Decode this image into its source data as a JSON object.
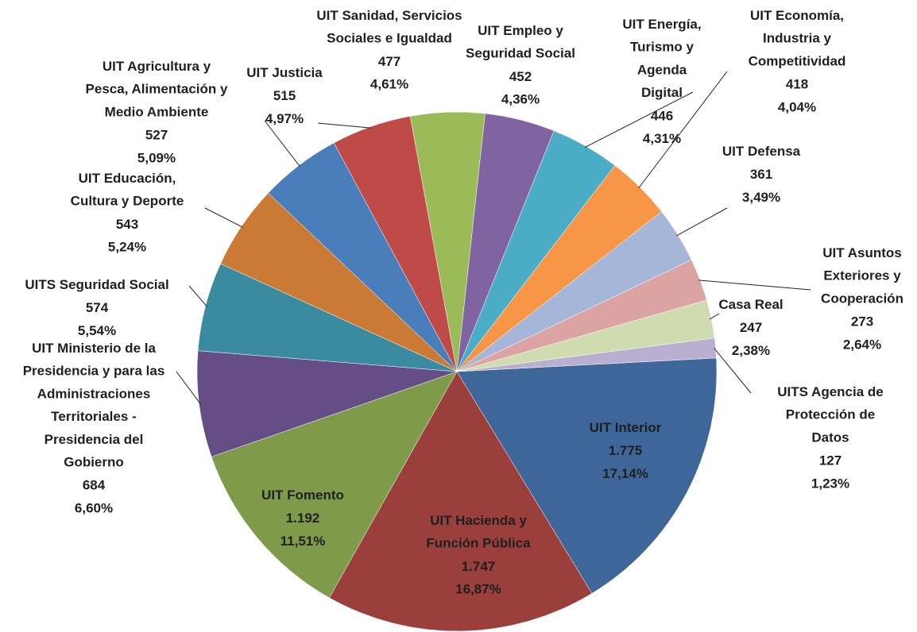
{
  "chart_data": {
    "type": "pie",
    "categories": [
      "UIT Interior",
      "UIT Hacienda y\nFunción Pública",
      "UIT Fomento",
      "UIT Ministerio de la\nPresidencia y para las\nAdministraciones\nTerritoriales -\nPresidencia del\nGobierno",
      "UITS Seguridad Social",
      "UIT Educación,\nCultura y Deporte",
      "UIT Agricultura y\nPesca, Alimentación y\nMedio Ambiente",
      "UIT Justicia",
      "UIT Sanidad, Servicios\nSociales e Igualdad",
      "UIT Empleo y\nSeguridad Social",
      "UIT Energía,\nTurismo y\nAgenda\nDigital",
      "UIT Economía,\nIndustria y\nCompetitividad",
      "UIT Defensa",
      "UIT Asuntos\nExteriores y\nCooperación",
      "Casa Real",
      "UITS Agencia de\nProtección de\nDatos"
    ],
    "values": [
      1775,
      1747,
      1192,
      684,
      574,
      543,
      527,
      515,
      477,
      452,
      446,
      418,
      361,
      273,
      247,
      127
    ],
    "value_labels": [
      "1.775",
      "1.747",
      "1.192",
      "684",
      "574",
      "543",
      "527",
      "515",
      "477",
      "452",
      "446",
      "418",
      "361",
      "273",
      "247",
      "127"
    ],
    "percentage_labels": [
      "17,14%",
      "16,87%",
      "11,51%",
      "6,60%",
      "5,54%",
      "5,24%",
      "5,09%",
      "4,97%",
      "4,61%",
      "4,36%",
      "4,31%",
      "4,04%",
      "3,49%",
      "2,64%",
      "2,38%",
      "1,23%"
    ],
    "colors": [
      "#3f6698",
      "#9b3f3d",
      "#7f9a48",
      "#644e85",
      "#3a8ba0",
      "#cb7a35",
      "#4a7ebb",
      "#be4b48",
      "#9bbb59",
      "#8064a2",
      "#4bacc6",
      "#f79646",
      "#a5b6d8",
      "#dba4a3",
      "#cfdcb0",
      "#b9afd0"
    ]
  }
}
